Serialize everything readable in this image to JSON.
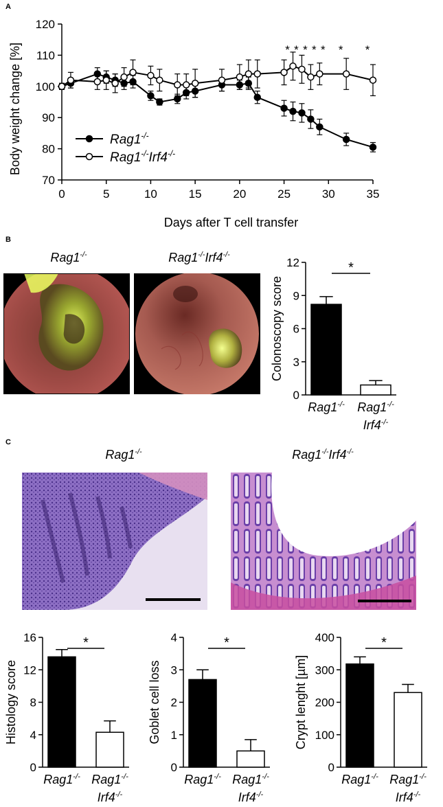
{
  "panels": {
    "a": "A",
    "b": "B",
    "c": "C"
  },
  "chart_data": [
    {
      "type": "line",
      "panel": "A",
      "xlabel": "Days after T cell transfer",
      "ylabel": "Body weight change [%]",
      "xlim": [
        0,
        35
      ],
      "ylim": [
        70,
        120
      ],
      "xticks": [
        0,
        5,
        10,
        15,
        20,
        25,
        30,
        35
      ],
      "yticks": [
        70,
        80,
        90,
        100,
        110,
        120
      ],
      "legend_position": "bottom-left",
      "grid": false,
      "series": [
        {
          "name": "Rag1-/-",
          "name_base": "Rag1",
          "name_sup": "-/-",
          "marker": "filled-circle",
          "x": [
            0,
            1,
            4,
            5,
            6,
            7,
            8,
            10,
            11,
            13,
            14,
            15,
            18,
            20,
            21,
            22,
            25,
            26,
            27,
            28,
            29,
            32,
            35
          ],
          "y": [
            100,
            101,
            104,
            103,
            102,
            101,
            101.5,
            97,
            95,
            96,
            98,
            98.5,
            100.5,
            100.5,
            101,
            96.5,
            93,
            92,
            91.5,
            89.5,
            87,
            83,
            80.5
          ],
          "err": [
            1,
            1.5,
            2,
            2,
            2,
            2,
            2,
            1.5,
            1,
            1.5,
            2,
            2,
            2,
            1.5,
            2,
            2,
            2.5,
            3,
            3,
            3,
            2.5,
            2,
            1.5
          ]
        },
        {
          "name": "Rag1-/-Irf4-/-",
          "name_base": "Rag1",
          "name_sup": "-/-",
          "name_base2": "Irf4",
          "name_sup2": "-/-",
          "marker": "open-circle",
          "x": [
            0,
            1,
            4,
            5,
            6,
            7,
            8,
            10,
            11,
            13,
            14,
            15,
            18,
            20,
            21,
            22,
            25,
            26,
            27,
            28,
            29,
            32,
            35
          ],
          "y": [
            100,
            102,
            101.5,
            102,
            101,
            103,
            104.5,
            103.5,
            102,
            100.5,
            100.5,
            101,
            102,
            103,
            104,
            104,
            104.5,
            106.5,
            105.5,
            103,
            104,
            104,
            102
          ],
          "err": [
            1,
            2.5,
            2.5,
            3,
            3,
            3,
            4,
            3,
            3.5,
            3.5,
            3.5,
            4.5,
            3.5,
            4,
            4.5,
            4.5,
            4,
            4.5,
            4.5,
            4,
            3.5,
            5,
            5
          ]
        }
      ],
      "significance": {
        "symbol": "*",
        "x": [
          26,
          27,
          28,
          29,
          30,
          32,
          35
        ]
      }
    },
    {
      "type": "bar",
      "panel": "B",
      "ylabel": "Colonoscopy score",
      "ylim": [
        0,
        12
      ],
      "yticks": [
        0,
        3,
        6,
        9,
        12
      ],
      "categories": [
        "Rag1-/-",
        "Rag1-/- Irf4-/-"
      ],
      "values": [
        8.2,
        0.9
      ],
      "errors": [
        0.7,
        0.4
      ],
      "fills": [
        "#000000",
        "#ffffff"
      ],
      "significance": "*"
    },
    {
      "type": "bar",
      "panel": "C",
      "ylabel": "Histology score",
      "ylim": [
        0,
        16
      ],
      "yticks": [
        0,
        4,
        8,
        12,
        16
      ],
      "categories": [
        "Rag1-/-",
        "Rag1-/- Irf4-/-"
      ],
      "values": [
        13.6,
        4.3
      ],
      "errors": [
        0.9,
        1.4
      ],
      "fills": [
        "#000000",
        "#ffffff"
      ],
      "significance": "*"
    },
    {
      "type": "bar",
      "panel": "C",
      "ylabel": "Goblet cell loss",
      "ylim": [
        0,
        4
      ],
      "yticks": [
        0,
        1,
        2,
        3,
        4
      ],
      "categories": [
        "Rag1-/-",
        "Rag1-/- Irf4-/-"
      ],
      "values": [
        2.7,
        0.5
      ],
      "errors": [
        0.3,
        0.35
      ],
      "fills": [
        "#000000",
        "#ffffff"
      ],
      "significance": "*"
    },
    {
      "type": "bar",
      "panel": "C",
      "ylabel": "Crypt lenght [µm]",
      "ylim": [
        0,
        400
      ],
      "yticks": [
        0,
        100,
        200,
        300,
        400
      ],
      "categories": [
        "Rag1-/-",
        "Rag1-/- Irf4-/-"
      ],
      "values": [
        318,
        230
      ],
      "errors": [
        22,
        25
      ],
      "fills": [
        "#000000",
        "#ffffff"
      ],
      "significance": "*"
    }
  ],
  "images": {
    "colonoscopy_left_label": "Rag1-/-",
    "colonoscopy_right_label": "Rag1-/-Irf4-/-",
    "histology_left_label": "Rag1-/-",
    "histology_right_label": "Rag1-/-Irf4-/-"
  },
  "label_parts": {
    "rag": "Rag1",
    "irf": "Irf4",
    "ko": "-/-"
  }
}
